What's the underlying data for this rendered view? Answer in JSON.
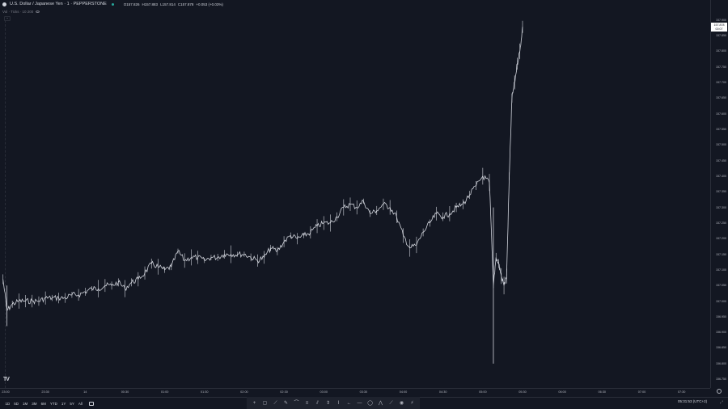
{
  "legend": {
    "symbol": "U.S. Dollar / Japanese Yen · 1 · PEPPERSTONE",
    "ohlc": [
      {
        "label": "O",
        "value": "157.826"
      },
      {
        "label": "H",
        "value": "157.883"
      },
      {
        "label": "L",
        "value": "157.814"
      },
      {
        "label": "C",
        "value": "157.878"
      }
    ],
    "change": "+0.053 (+0.03%)"
  },
  "indicator": {
    "label": "Vol · Ticks · 10 200"
  },
  "price_axis": {
    "ticks": [
      "157.900",
      "157.850",
      "157.800",
      "157.750",
      "157.700",
      "157.650",
      "157.600",
      "157.550",
      "157.500",
      "157.450",
      "157.400",
      "157.350",
      "157.300",
      "157.250",
      "157.200",
      "157.150",
      "157.100",
      "157.050",
      "157.000",
      "156.950",
      "156.900",
      "156.850",
      "156.800",
      "156.750"
    ],
    "last_price": "157.878",
    "last_countdown": "00:07"
  },
  "time_axis": {
    "ticks": [
      "23:00",
      "23:30",
      "14",
      "00:30",
      "01:00",
      "01:30",
      "02:00",
      "02:30",
      "03:00",
      "03:30",
      "04:00",
      "04:30",
      "05:00",
      "05:30",
      "06:00",
      "06:30",
      "07:00",
      "07:30"
    ]
  },
  "toolbar": {
    "ranges": [
      "1D",
      "5D",
      "1M",
      "3M",
      "6M",
      "YTD",
      "1Y",
      "5Y",
      "All"
    ],
    "clock": "05:31:53 (UTC+2)"
  },
  "chart_data": {
    "type": "line",
    "x_label": "",
    "y_label": "",
    "ylim": [
      156.74,
      157.92
    ],
    "x_range": [
      "23:00",
      "07:40"
    ],
    "series": [
      {
        "x": [
          "22:58",
          "23:01",
          "23:05",
          "23:10",
          "23:15",
          "23:20",
          "23:25",
          "23:30",
          "23:35",
          "23:40",
          "23:45",
          "23:50",
          "23:55",
          "00:00",
          "00:05",
          "00:10",
          "00:15",
          "00:20",
          "00:25",
          "00:30",
          "00:35",
          "00:40",
          "00:45",
          "00:50",
          "00:55",
          "01:00",
          "01:05",
          "01:10",
          "01:15",
          "01:20",
          "01:25",
          "01:30",
          "01:35",
          "01:40",
          "01:45",
          "01:50",
          "01:55",
          "02:00",
          "02:05",
          "02:10",
          "02:15",
          "02:20",
          "02:25",
          "02:30",
          "02:35",
          "02:40",
          "02:45",
          "02:50",
          "02:55",
          "03:00",
          "03:05",
          "03:10",
          "03:15",
          "03:20",
          "03:25",
          "03:30",
          "03:35",
          "03:40",
          "03:45",
          "03:50",
          "03:55",
          "04:00",
          "04:05",
          "04:10",
          "04:15",
          "04:20",
          "04:25",
          "04:30",
          "04:35",
          "04:40",
          "04:45",
          "04:50",
          "04:55",
          "05:00",
          "05:05",
          "05:08",
          "05:10",
          "05:12",
          "05:14",
          "05:16",
          "05:18",
          "05:20",
          "05:22",
          "05:24",
          "05:26",
          "05:28",
          "05:30"
        ],
        "values": [
          157.07,
          156.97,
          156.99,
          157.0,
          157.0,
          157.0,
          157.0,
          157.01,
          157.01,
          157.01,
          157.01,
          157.02,
          157.02,
          157.03,
          157.04,
          157.04,
          157.05,
          157.05,
          157.06,
          157.04,
          157.06,
          157.07,
          157.09,
          157.12,
          157.11,
          157.1,
          157.11,
          157.16,
          157.13,
          157.14,
          157.14,
          157.13,
          157.14,
          157.14,
          157.15,
          157.15,
          157.15,
          157.15,
          157.14,
          157.13,
          157.14,
          157.17,
          157.16,
          157.19,
          157.21,
          157.2,
          157.21,
          157.22,
          157.24,
          157.25,
          157.25,
          157.27,
          157.3,
          157.31,
          157.3,
          157.32,
          157.28,
          157.29,
          157.31,
          157.3,
          157.27,
          157.21,
          157.17,
          157.18,
          157.22,
          157.25,
          157.28,
          157.27,
          157.28,
          157.3,
          157.31,
          157.34,
          157.37,
          157.4,
          157.38,
          157.05,
          157.14,
          157.12,
          157.08,
          157.05,
          157.08,
          157.4,
          157.65,
          157.7,
          157.76,
          157.8,
          157.878
        ]
      }
    ],
    "spike_low": 156.8,
    "spike_low_time": "05:08"
  }
}
